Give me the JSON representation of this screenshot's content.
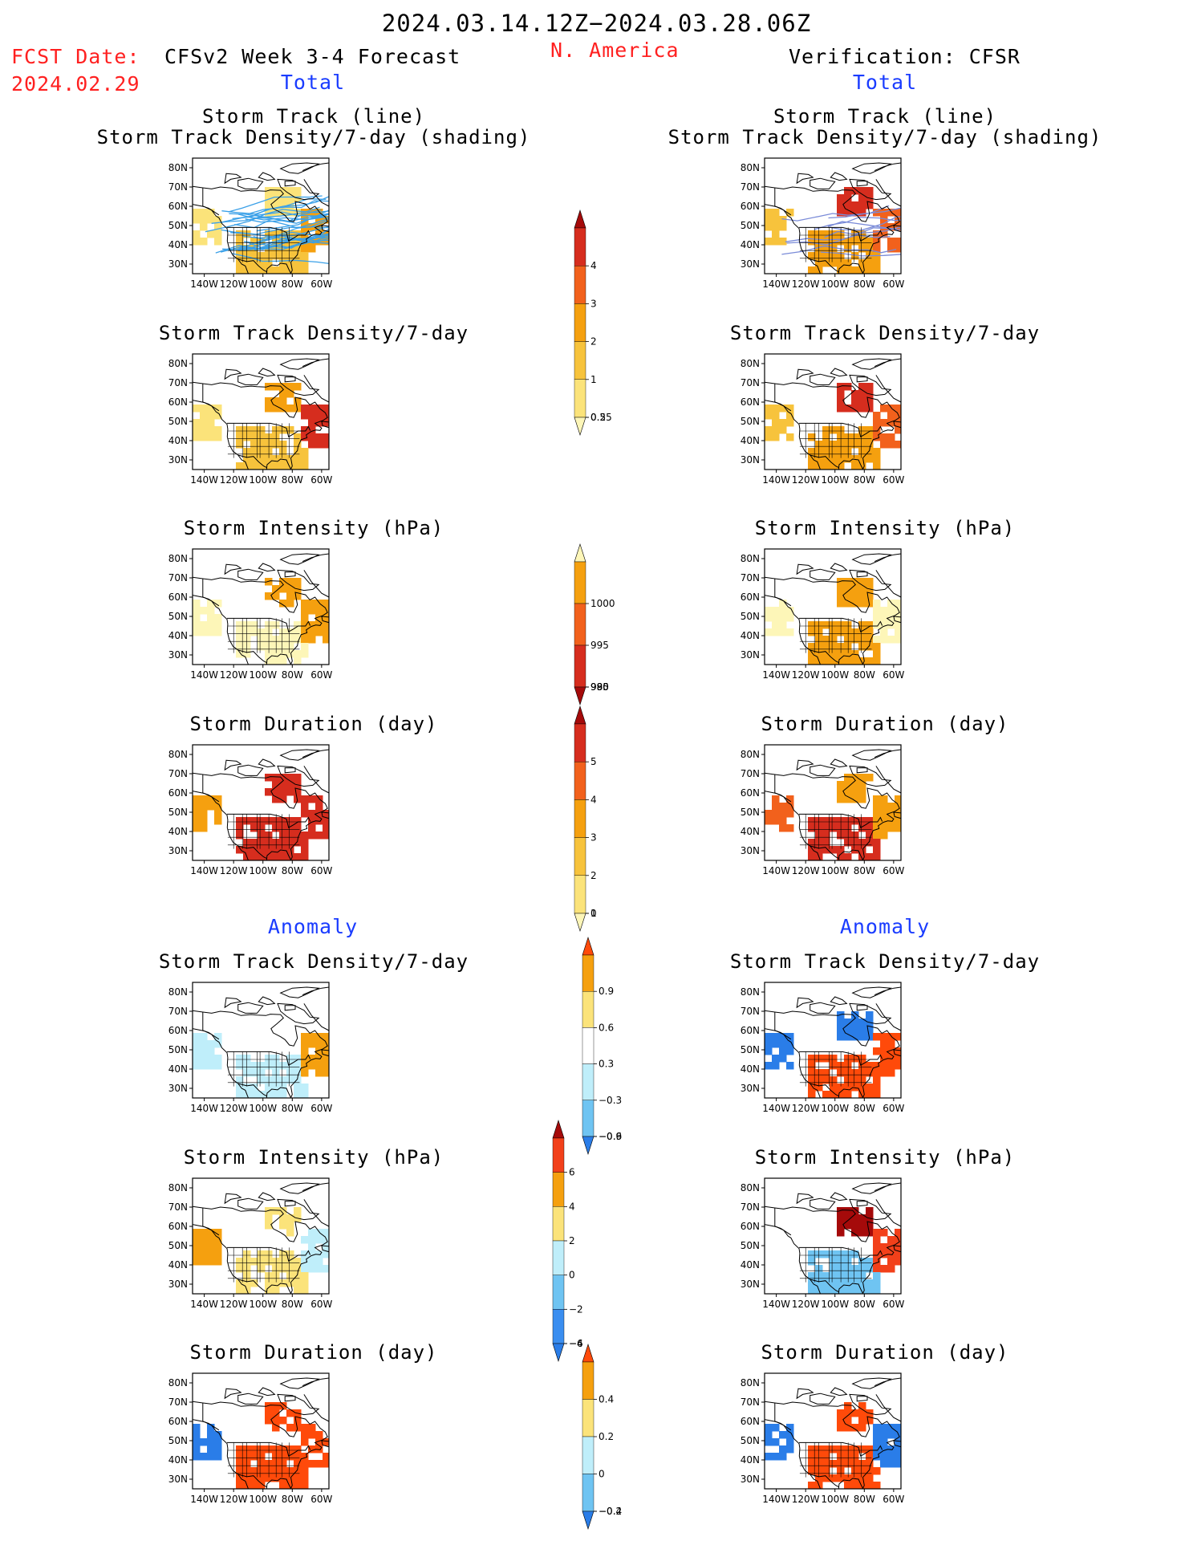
{
  "header": {
    "period": "2024.03.14.12Z−2024.03.28.06Z",
    "fcst_label": "FCST Date:",
    "fcst_date": "2024.02.29",
    "left_title": "CFSv2 Week 3-4 Forecast",
    "region": "N. America",
    "right_title": "Verification: CFSR",
    "total_label": "Total",
    "anomaly_label": "Anomaly"
  },
  "panel_titles": {
    "track_line": "Storm Track (line)",
    "track_shading": "Storm Track Density/7-day (shading)",
    "density": "Storm Track Density/7-day",
    "intensity": "Storm Intensity (hPa)",
    "duration": "Storm Duration (day)"
  },
  "map_axes": {
    "lat_labels": [
      "80N",
      "70N",
      "60N",
      "50N",
      "40N",
      "30N"
    ],
    "lon_labels": [
      "140W",
      "120W",
      "100W",
      "80W",
      "60W"
    ]
  },
  "colorbars": {
    "density_total": {
      "labels": [
        "4",
        "3",
        "2",
        "1",
        "0.5",
        "0.25"
      ],
      "colors": [
        "#a50a0a",
        "#d62d1e",
        "#f2611c",
        "#f5a00f",
        "#f7c33c",
        "#fbe37a",
        "#fdf6b8"
      ]
    },
    "intensity_total": {
      "labels": [
        "1000",
        "995",
        "990",
        "985",
        "980"
      ],
      "colors": [
        "#fdf6b8",
        "#f5a00f",
        "#f2611c",
        "#d62d1e",
        "#a50a0a"
      ]
    },
    "duration_total": {
      "labels": [
        "5",
        "4",
        "3",
        "2",
        "1",
        "0"
      ],
      "colors": [
        "#a50a0a",
        "#d62d1e",
        "#f2611c",
        "#f5a00f",
        "#f7c33c",
        "#fbe37a",
        "#fdf6b8"
      ]
    },
    "density_anom": {
      "labels": [
        "0.9",
        "0.6",
        "0.3",
        "−0.3",
        "−0.6",
        "−0.9"
      ],
      "colors": [
        "#ff4a0a",
        "#f5a00f",
        "#fbe37a",
        "#ffffff",
        "#bfeefa",
        "#6fc4f2",
        "#2a7de8"
      ]
    },
    "intensity_anom": {
      "labels": [
        "6",
        "4",
        "2",
        "0",
        "−2",
        "−4",
        "−6"
      ],
      "colors": [
        "#a50a0a",
        "#f2401a",
        "#f5a00f",
        "#fbe37a",
        "#bfeefa",
        "#6fc4f2",
        "#3a8ef0",
        "#2a7de8"
      ]
    },
    "duration_anom": {
      "labels": [
        "0.4",
        "0.2",
        "0",
        "−0.2",
        "−0.4"
      ],
      "colors": [
        "#ff4a0a",
        "#f5a00f",
        "#fbe37a",
        "#bfeefa",
        "#6fc4f2",
        "#2a7de8"
      ]
    }
  },
  "panels": [
    {
      "id": "fc-track",
      "fill": [
        [
          "#fbe37a",
          "#fbe37a"
        ],
        [
          "#f7c33c",
          "#f5a00f"
        ]
      ],
      "lines": true
    },
    {
      "id": "ob-track",
      "fill": [
        [
          "#f7c33c",
          "#d62d1e"
        ],
        [
          "#f5a00f",
          "#f2611c"
        ]
      ],
      "lines": true
    },
    {
      "id": "fc-density",
      "fill": [
        [
          "#fbe37a",
          "#f5a00f"
        ],
        [
          "#f7c33c",
          "#d62d1e"
        ]
      ]
    },
    {
      "id": "ob-density",
      "fill": [
        [
          "#f7c33c",
          "#d62d1e"
        ],
        [
          "#f5a00f",
          "#f2611c"
        ]
      ]
    },
    {
      "id": "fc-intensity",
      "fill": [
        [
          "#fdf6b8",
          "#f5a00f"
        ],
        [
          "#fdf6b8",
          "#f5a00f"
        ]
      ]
    },
    {
      "id": "ob-intensity",
      "fill": [
        [
          "#fdf6b8",
          "#f5a00f"
        ],
        [
          "#f5a00f",
          "#fdf6b8"
        ]
      ]
    },
    {
      "id": "fc-duration",
      "fill": [
        [
          "#f5a00f",
          "#d62d1e"
        ],
        [
          "#d62d1e",
          "#d62d1e"
        ]
      ]
    },
    {
      "id": "ob-duration",
      "fill": [
        [
          "#f2611c",
          "#f5a00f"
        ],
        [
          "#d62d1e",
          "#f5a00f"
        ]
      ]
    },
    {
      "id": "fc-density-anom",
      "fill": [
        [
          "#bfeefa",
          "#ffffff"
        ],
        [
          "#bfeefa",
          "#f5a00f"
        ]
      ]
    },
    {
      "id": "ob-density-anom",
      "fill": [
        [
          "#2a7de8",
          "#2a7de8"
        ],
        [
          "#ff4a0a",
          "#ff4a0a"
        ]
      ]
    },
    {
      "id": "fc-intensity-anom",
      "fill": [
        [
          "#f5a00f",
          "#fbe37a"
        ],
        [
          "#fbe37a",
          "#bfeefa"
        ]
      ]
    },
    {
      "id": "ob-intensity-anom",
      "fill": [
        [
          "#ffffff",
          "#a50a0a"
        ],
        [
          "#6fc4f2",
          "#f2401a"
        ]
      ]
    },
    {
      "id": "fc-duration-anom",
      "fill": [
        [
          "#2a7de8",
          "#ff4a0a"
        ],
        [
          "#ff4a0a",
          "#ff4a0a"
        ]
      ]
    },
    {
      "id": "ob-duration-anom",
      "fill": [
        [
          "#2a7de8",
          "#ff4a0a"
        ],
        [
          "#ff4a0a",
          "#2a7de8"
        ]
      ]
    }
  ]
}
